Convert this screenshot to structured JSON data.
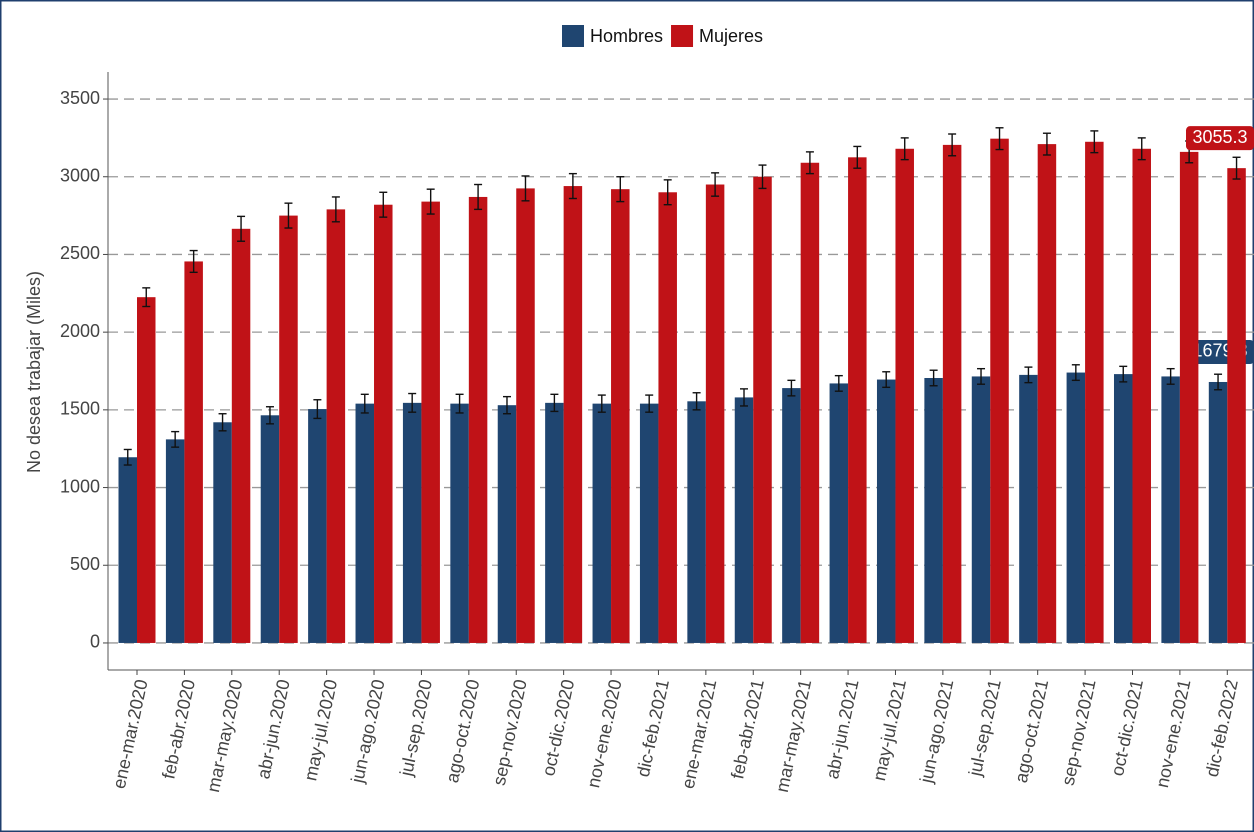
{
  "chart_data": {
    "type": "bar",
    "y_label": "No desea trabajar (Miles)",
    "categories": [
      "ene-mar.2020",
      "feb-abr.2020",
      "mar-may.2020",
      "abr-jun.2020",
      "may-jul.2020",
      "jun-ago.2020",
      "jul-sep.2020",
      "ago-oct.2020",
      "sep-nov.2020",
      "oct-dic.2020",
      "nov-ene.2020",
      "dic-feb.2021",
      "ene-mar.2021",
      "feb-abr.2021",
      "mar-may.2021",
      "abr-jun.2021",
      "may-jul.2021",
      "jun-ago.2021",
      "jul-sep.2021",
      "ago-oct.2021",
      "sep-nov.2021",
      "oct-dic.2021",
      "nov-ene.2021",
      "dic-feb.2022"
    ],
    "series": [
      {
        "name": "Hombres",
        "color": "#1f4570",
        "values": [
          1195,
          1310,
          1420,
          1465,
          1505,
          1540,
          1545,
          1540,
          1530,
          1545,
          1540,
          1540,
          1555,
          1580,
          1640,
          1670,
          1695,
          1705,
          1715,
          1725,
          1740,
          1730,
          1715,
          1679.3
        ],
        "errors": [
          50,
          50,
          55,
          55,
          60,
          60,
          60,
          60,
          55,
          55,
          55,
          55,
          55,
          55,
          50,
          50,
          50,
          50,
          50,
          50,
          50,
          50,
          50,
          50
        ]
      },
      {
        "name": "Mujeres",
        "color": "#c01217",
        "values": [
          2225,
          2455,
          2665,
          2750,
          2790,
          2820,
          2840,
          2870,
          2925,
          2940,
          2920,
          2900,
          2950,
          3000,
          3090,
          3125,
          3180,
          3205,
          3245,
          3210,
          3225,
          3180,
          3160,
          3055.3
        ],
        "errors": [
          60,
          70,
          80,
          80,
          80,
          80,
          80,
          80,
          80,
          80,
          80,
          80,
          75,
          75,
          70,
          70,
          70,
          70,
          70,
          70,
          70,
          70,
          70,
          70
        ]
      }
    ],
    "ylim": [
      -174,
      3674
    ],
    "yticks": [
      0,
      500,
      1000,
      1500,
      2000,
      2500,
      3000,
      3500
    ],
    "grid": true
  }
}
